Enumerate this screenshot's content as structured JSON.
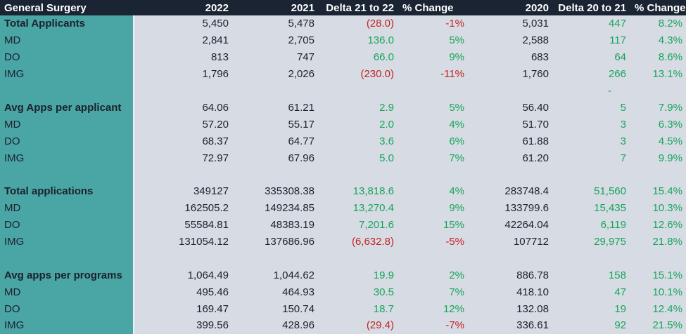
{
  "header": {
    "title": "General Surgery",
    "columns": [
      "2022",
      "2021",
      "Delta 21 to 22",
      "% Change",
      "2020",
      "Delta 20 to 21",
      "% Change"
    ]
  },
  "colors": {
    "header_bg": "#1b2433",
    "teal": "#4aa5a5",
    "body_bg": "#d7dce4",
    "positive_green": "#17a45a",
    "negative_red": "#c22323",
    "text_dark": "#1c212b",
    "header_text": "#ffffff",
    "divider": "#f2f3f6"
  },
  "rows": [
    {
      "label": "Total Applicants",
      "bold": true,
      "values": [
        "5,450",
        "5,478",
        "(28.0)",
        "-1%",
        "5,031",
        "447",
        "8.2%"
      ]
    },
    {
      "label": "MD",
      "bold": false,
      "values": [
        "2,841",
        "2,705",
        "136.0",
        "5%",
        "2,588",
        "117",
        "4.3%"
      ]
    },
    {
      "label": "DO",
      "bold": false,
      "values": [
        "813",
        "747",
        "66.0",
        "9%",
        "683",
        "64",
        "8.6%"
      ]
    },
    {
      "label": "IMG",
      "bold": false,
      "values": [
        "1,796",
        "2,026",
        "(230.0)",
        "-11%",
        "1,760",
        "266",
        "13.1%"
      ]
    },
    {
      "label": "",
      "bold": false,
      "values": [
        "",
        "",
        "",
        "",
        "",
        "-",
        ""
      ]
    },
    {
      "label": "Avg Apps per applicant",
      "bold": true,
      "values": [
        "64.06",
        "61.21",
        "2.9",
        "5%",
        "56.40",
        "5",
        "7.9%"
      ]
    },
    {
      "label": "MD",
      "bold": false,
      "values": [
        "57.20",
        "55.17",
        "2.0",
        "4%",
        "51.70",
        "3",
        "6.3%"
      ]
    },
    {
      "label": "DO",
      "bold": false,
      "values": [
        "68.37",
        "64.77",
        "3.6",
        "6%",
        "61.88",
        "3",
        "4.5%"
      ]
    },
    {
      "label": "IMG",
      "bold": false,
      "values": [
        "72.97",
        "67.96",
        "5.0",
        "7%",
        "61.20",
        "7",
        "9.9%"
      ]
    },
    {
      "label": "",
      "bold": false,
      "values": [
        "",
        "",
        "",
        "",
        "",
        "",
        ""
      ]
    },
    {
      "label": "Total applications",
      "bold": true,
      "values": [
        "349127",
        "335308.38",
        "13,818.6",
        "4%",
        "283748.4",
        "51,560",
        "15.4%"
      ]
    },
    {
      "label": "MD",
      "bold": false,
      "values": [
        "162505.2",
        "149234.85",
        "13,270.4",
        "9%",
        "133799.6",
        "15,435",
        "10.3%"
      ]
    },
    {
      "label": "DO",
      "bold": false,
      "values": [
        "55584.81",
        "48383.19",
        "7,201.6",
        "15%",
        "42264.04",
        "6,119",
        "12.6%"
      ]
    },
    {
      "label": "IMG",
      "bold": false,
      "values": [
        "131054.12",
        "137686.96",
        "(6,632.8)",
        "-5%",
        "107712",
        "29,975",
        "21.8%"
      ]
    },
    {
      "label": "",
      "bold": false,
      "values": [
        "",
        "",
        "",
        "",
        "",
        "",
        ""
      ]
    },
    {
      "label": "Avg apps per programs",
      "bold": true,
      "values": [
        "1,064.49",
        "1,044.62",
        "19.9",
        "2%",
        "886.78",
        "158",
        "15.1%"
      ]
    },
    {
      "label": "MD",
      "bold": false,
      "values": [
        "495.46",
        "464.93",
        "30.5",
        "7%",
        "418.10",
        "47",
        "10.1%"
      ]
    },
    {
      "label": "DO",
      "bold": false,
      "values": [
        "169.47",
        "150.74",
        "18.7",
        "12%",
        "132.08",
        "19",
        "12.4%"
      ]
    },
    {
      "label": "IMG",
      "bold": false,
      "values": [
        "399.56",
        "428.96",
        "(29.4)",
        "-7%",
        "336.61",
        "92",
        "21.5%"
      ]
    }
  ]
}
